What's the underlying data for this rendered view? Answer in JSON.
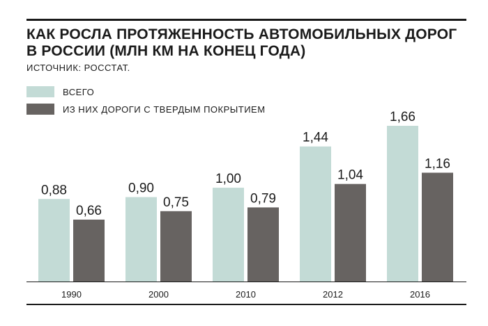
{
  "header": {
    "title": "КАК РОСЛА ПРОТЯЖЕННОСТЬ АВТОМОБИЛЬНЫХ ДОРОГ В РОССИИ (МЛН КМ НА КОНЕЦ ГОДА)",
    "source": "ИСТОЧНИК: РОССТАТ."
  },
  "colors": {
    "total": "#c3dbd6",
    "paved": "#676361",
    "text": "#1a1a1a",
    "rule": "#1a1a1a"
  },
  "chart_data": {
    "type": "bar",
    "title": "КАК РОСЛА ПРОТЯЖЕННОСТЬ АВТОМОБИЛЬНЫХ ДОРОГ В РОССИИ (МЛН КМ НА КОНЕЦ ГОДА)",
    "xlabel": "",
    "ylabel": "",
    "categories": [
      "1990",
      "2000",
      "2010",
      "2012",
      "2016"
    ],
    "series": [
      {
        "name": "ВСЕГО",
        "values": [
          0.88,
          0.9,
          1.0,
          1.44,
          1.66
        ],
        "labels": [
          "0,88",
          "0,90",
          "1,00",
          "1,44",
          "1,66"
        ]
      },
      {
        "name": "ИЗ НИХ ДОРОГИ С ТВЕРДЫМ ПОКРЫТИЕМ",
        "values": [
          0.66,
          0.75,
          0.79,
          1.04,
          1.16
        ],
        "labels": [
          "0,66",
          "0,75",
          "0,79",
          "1,04",
          "1,16"
        ]
      }
    ],
    "ylim": [
      0,
      1.66
    ],
    "grid": false,
    "legend": "top-left"
  }
}
